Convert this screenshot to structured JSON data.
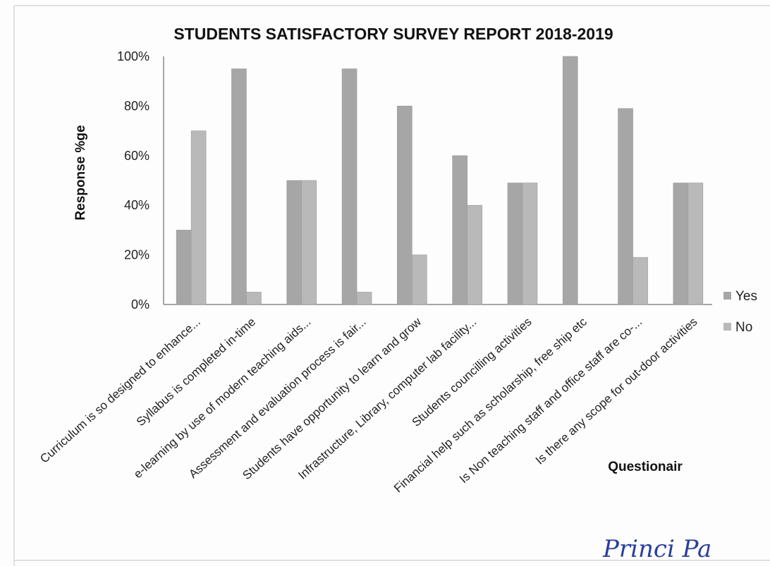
{
  "chart_data": {
    "type": "bar",
    "title": "STUDENTS SATISFACTORY SURVEY REPORT 2018-2019",
    "xlabel": "Questionair",
    "ylabel": "Response %ge",
    "ylim": [
      0,
      100
    ],
    "yticks": [
      "0%",
      "20%",
      "40%",
      "60%",
      "80%",
      "100%"
    ],
    "grid": false,
    "legend_position": "right",
    "categories": [
      "Curriculum is so designed to enhance...",
      "Syllabus is completed in-time",
      "e-learning by use of modern teaching aids...",
      "Assessment and evaluation process is fair...",
      "Students have opportunity to learn and grow",
      "Infrastructure, Library, computer lab facility...",
      "Students councilling activities",
      "Financial help such as scholarship, free ship etc",
      "Is Non teaching staff and office staff are co-...",
      "Is there any scope for out-door activities"
    ],
    "series": [
      {
        "name": "Yes",
        "color": "#a6a6a6",
        "values": [
          30,
          95,
          50,
          95,
          80,
          60,
          49,
          100,
          79,
          49
        ]
      },
      {
        "name": "No",
        "color": "#b9b9b9",
        "values": [
          70,
          5,
          50,
          5,
          20,
          40,
          49,
          0,
          19,
          49
        ]
      }
    ]
  },
  "signature_text": "Princi Pa"
}
